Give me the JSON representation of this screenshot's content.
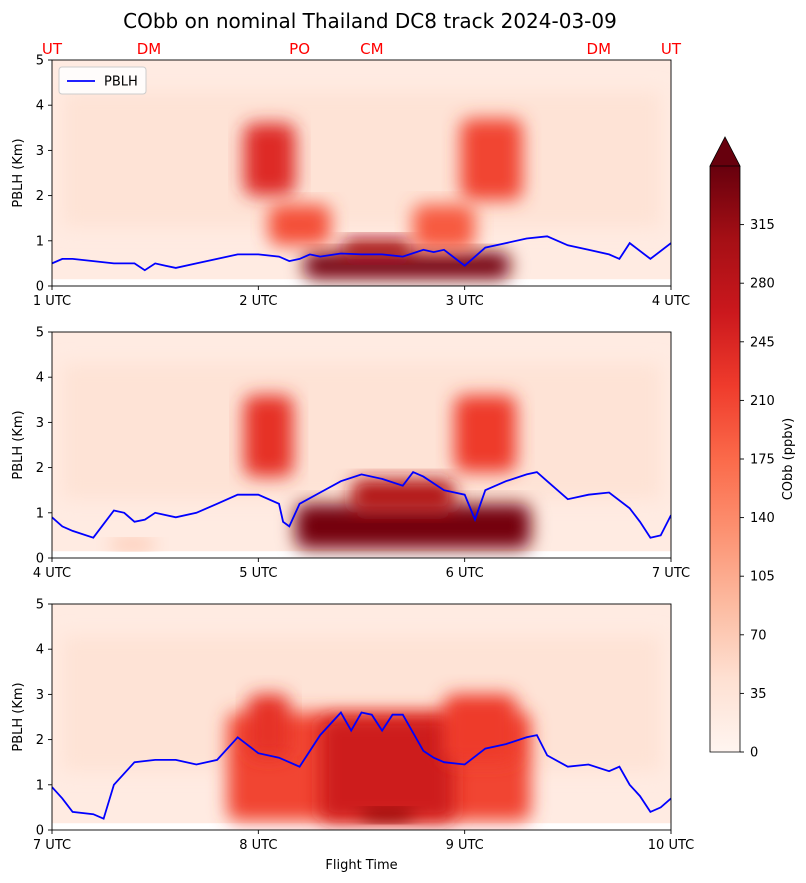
{
  "figure_title": "CObb on nominal Thailand DC8 track 2024-03-09",
  "chart_data": [
    {
      "type": "heatmap",
      "ylabel": "PBLH (Km)",
      "ylim": [
        0,
        5
      ],
      "yticks": [
        "0",
        "1",
        "2",
        "3",
        "4",
        "5"
      ],
      "x_range_utc": [
        1,
        4
      ],
      "xticks": [
        {
          "value": 1,
          "label": "1 UTC"
        },
        {
          "value": 2,
          "label": "2 UTC"
        },
        {
          "value": 3,
          "label": "3 UTC"
        },
        {
          "value": 4,
          "label": "4 UTC"
        }
      ],
      "location_markers": [
        {
          "value": 1.0,
          "label": "UT"
        },
        {
          "value": 1.47,
          "label": "DM"
        },
        {
          "value": 2.2,
          "label": "PO"
        },
        {
          "value": 2.55,
          "label": "CM"
        },
        {
          "value": 3.65,
          "label": "DM"
        },
        {
          "value": 4.0,
          "label": "UT"
        }
      ],
      "legend": {
        "position": "upper-left",
        "entries": [
          {
            "label": "PBLH",
            "color": "#0000ff"
          }
        ]
      },
      "series": [
        {
          "name": "PBLH",
          "color": "#0000ff",
          "x": [
            1.0,
            1.05,
            1.1,
            1.2,
            1.3,
            1.4,
            1.45,
            1.5,
            1.55,
            1.6,
            1.7,
            1.8,
            1.9,
            2.0,
            2.1,
            2.15,
            2.2,
            2.25,
            2.3,
            2.4,
            2.5,
            2.6,
            2.7,
            2.8,
            2.85,
            2.9,
            3.0,
            3.1,
            3.2,
            3.3,
            3.4,
            3.5,
            3.6,
            3.7,
            3.75,
            3.8,
            3.9,
            4.0
          ],
          "y": [
            0.5,
            0.6,
            0.6,
            0.55,
            0.5,
            0.5,
            0.35,
            0.5,
            0.45,
            0.4,
            0.5,
            0.6,
            0.7,
            0.7,
            0.65,
            0.55,
            0.6,
            0.7,
            0.65,
            0.72,
            0.7,
            0.7,
            0.65,
            0.8,
            0.75,
            0.8,
            0.45,
            0.85,
            0.95,
            1.05,
            1.1,
            0.9,
            0.8,
            0.7,
            0.6,
            0.95,
            0.6,
            0.95
          ]
        }
      ],
      "smoke_regions": [
        {
          "x": [
            2.22,
            3.22
          ],
          "y": [
            0.15,
            0.75
          ],
          "value": 340
        },
        {
          "x": [
            2.4,
            2.75
          ],
          "y": [
            0.6,
            1.05
          ],
          "value": 300
        },
        {
          "x": [
            1.93,
            2.18
          ],
          "y": [
            2.0,
            3.6
          ],
          "value": 240
        },
        {
          "x": [
            2.98,
            3.28
          ],
          "y": [
            1.9,
            3.7
          ],
          "value": 210
        },
        {
          "x": [
            2.05,
            2.35
          ],
          "y": [
            0.9,
            1.8
          ],
          "value": 200
        },
        {
          "x": [
            2.75,
            3.05
          ],
          "y": [
            0.8,
            1.8
          ],
          "value": 190
        }
      ]
    },
    {
      "type": "heatmap",
      "ylabel": "PBLH (Km)",
      "ylim": [
        0,
        5
      ],
      "yticks": [
        "0",
        "1",
        "2",
        "3",
        "4",
        "5"
      ],
      "x_range_utc": [
        4,
        7
      ],
      "xticks": [
        {
          "value": 4,
          "label": "4 UTC"
        },
        {
          "value": 5,
          "label": "5 UTC"
        },
        {
          "value": 6,
          "label": "6 UTC"
        },
        {
          "value": 7,
          "label": "7 UTC"
        }
      ],
      "series": [
        {
          "name": "PBLH",
          "color": "#0000ff",
          "x": [
            4.0,
            4.05,
            4.1,
            4.2,
            4.25,
            4.3,
            4.35,
            4.4,
            4.45,
            4.5,
            4.6,
            4.7,
            4.8,
            4.9,
            5.0,
            5.1,
            5.12,
            5.15,
            5.2,
            5.3,
            5.4,
            5.5,
            5.6,
            5.7,
            5.75,
            5.8,
            5.9,
            6.0,
            6.05,
            6.1,
            6.2,
            6.3,
            6.35,
            6.4,
            6.5,
            6.6,
            6.7,
            6.8,
            6.85,
            6.9,
            6.95,
            7.0
          ],
          "y": [
            0.9,
            0.7,
            0.6,
            0.45,
            0.75,
            1.05,
            1.0,
            0.8,
            0.85,
            1.0,
            0.9,
            1.0,
            1.2,
            1.4,
            1.4,
            1.2,
            0.8,
            0.7,
            1.2,
            1.45,
            1.7,
            1.85,
            1.75,
            1.6,
            1.9,
            1.8,
            1.5,
            1.4,
            0.85,
            1.5,
            1.7,
            1.85,
            1.9,
            1.7,
            1.3,
            1.4,
            1.45,
            1.1,
            0.8,
            0.45,
            0.5,
            0.95
          ]
        }
      ],
      "smoke_regions": [
        {
          "x": [
            5.18,
            6.32
          ],
          "y": [
            0.2,
            1.2
          ],
          "value": 340
        },
        {
          "x": [
            5.45,
            5.95
          ],
          "y": [
            1.0,
            1.75
          ],
          "value": 290
        },
        {
          "x": [
            4.93,
            5.17
          ],
          "y": [
            1.8,
            3.6
          ],
          "value": 230
        },
        {
          "x": [
            5.95,
            6.25
          ],
          "y": [
            1.9,
            3.6
          ],
          "value": 220
        },
        {
          "x": [
            4.28,
            4.5
          ],
          "y": [
            0.2,
            0.4
          ],
          "value": 90
        }
      ]
    },
    {
      "type": "heatmap",
      "xlabel": "Flight Time",
      "ylabel": "PBLH (Km)",
      "ylim": [
        0,
        5
      ],
      "yticks": [
        "0",
        "1",
        "2",
        "3",
        "4",
        "5"
      ],
      "x_range_utc": [
        7,
        10
      ],
      "xticks": [
        {
          "value": 7,
          "label": "7 UTC"
        },
        {
          "value": 8,
          "label": "8 UTC"
        },
        {
          "value": 9,
          "label": "9 UTC"
        },
        {
          "value": 10,
          "label": "10 UTC"
        }
      ],
      "series": [
        {
          "name": "PBLH",
          "color": "#0000ff",
          "x": [
            7.0,
            7.05,
            7.1,
            7.2,
            7.25,
            7.3,
            7.4,
            7.5,
            7.6,
            7.7,
            7.8,
            7.9,
            8.0,
            8.1,
            8.2,
            8.3,
            8.4,
            8.45,
            8.5,
            8.55,
            8.6,
            8.65,
            8.7,
            8.8,
            8.85,
            8.9,
            9.0,
            9.1,
            9.2,
            9.3,
            9.35,
            9.4,
            9.5,
            9.6,
            9.7,
            9.75,
            9.8,
            9.85,
            9.9,
            9.95,
            10.0
          ],
          "y": [
            0.95,
            0.7,
            0.4,
            0.35,
            0.25,
            1.0,
            1.5,
            1.55,
            1.55,
            1.45,
            1.55,
            2.05,
            1.7,
            1.6,
            1.4,
            2.1,
            2.6,
            2.2,
            2.6,
            2.55,
            2.2,
            2.55,
            2.55,
            1.75,
            1.6,
            1.5,
            1.45,
            1.8,
            1.9,
            2.05,
            2.1,
            1.65,
            1.4,
            1.45,
            1.3,
            1.4,
            1.0,
            0.75,
            0.4,
            0.5,
            0.7
          ]
        }
      ],
      "smoke_regions": [
        {
          "x": [
            7.85,
            9.32
          ],
          "y": [
            0.2,
            2.6
          ],
          "value": 210
        },
        {
          "x": [
            8.3,
            8.95
          ],
          "y": [
            0.2,
            2.5
          ],
          "value": 260
        },
        {
          "x": [
            8.5,
            8.75
          ],
          "y": [
            0.2,
            0.45
          ],
          "value": 330
        },
        {
          "x": [
            7.95,
            8.15
          ],
          "y": [
            1.6,
            3.0
          ],
          "value": 230
        },
        {
          "x": [
            8.9,
            9.25
          ],
          "y": [
            1.5,
            3.0
          ],
          "value": 220
        }
      ]
    }
  ],
  "colorbar": {
    "label": "CObb (ppbv)",
    "min": 0,
    "max": 350,
    "extend": "max",
    "ticks": [
      "0",
      "35",
      "70",
      "105",
      "140",
      "175",
      "210",
      "245",
      "280",
      "315"
    ],
    "colors": [
      "#fff5f0",
      "#fee0d2",
      "#fcbba1",
      "#fc9272",
      "#fb6a4a",
      "#ef3b2c",
      "#cb181d",
      "#a50f15",
      "#67000d"
    ]
  },
  "colors": {
    "location_labels": "#ff0000",
    "pblh_line": "#0000ff"
  }
}
